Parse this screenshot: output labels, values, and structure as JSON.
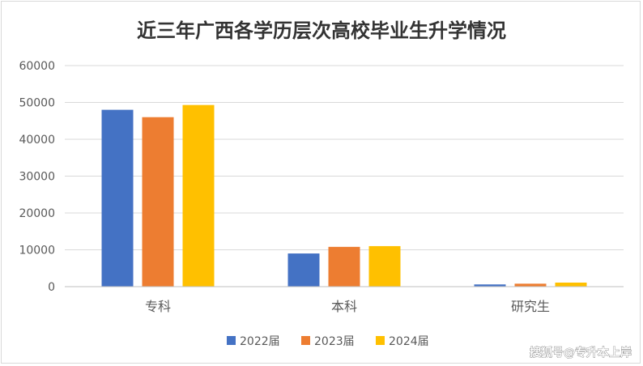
{
  "chart_data": {
    "type": "bar",
    "title": "近三年广西各学历层次高校毕业生升学情况",
    "categories": [
      "专科",
      "本科",
      "研究生"
    ],
    "series": [
      {
        "name": "2022届",
        "values": [
          48000,
          9000,
          600
        ]
      },
      {
        "name": "2023届",
        "values": [
          46000,
          10800,
          800
        ]
      },
      {
        "name": "2024届",
        "values": [
          49300,
          11000,
          1100
        ]
      }
    ],
    "ylim": [
      0,
      60000
    ],
    "yticks": [
      0,
      10000,
      20000,
      30000,
      40000,
      50000,
      60000
    ],
    "xlabel": "",
    "ylabel": "",
    "grid": true,
    "legend_position": "bottom",
    "colors": [
      "#4472C4",
      "#ED7D31",
      "#FFC000"
    ]
  },
  "watermark": "搜狐号@专升本上岸"
}
